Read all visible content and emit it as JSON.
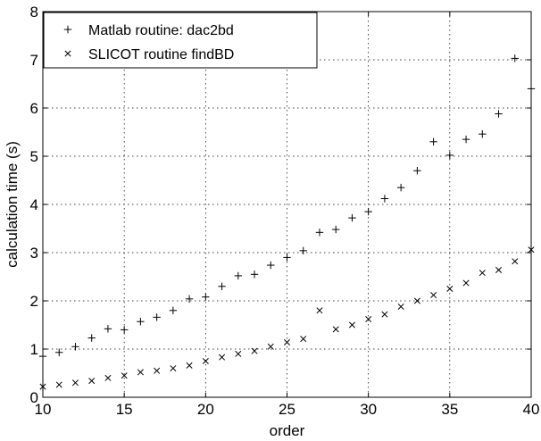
{
  "chart_data": {
    "type": "scatter",
    "xlabel": "order",
    "ylabel": "calculation time (s)",
    "xlim": [
      10,
      40
    ],
    "ylim": [
      0,
      8
    ],
    "xticks": [
      10,
      15,
      20,
      25,
      30,
      35,
      40
    ],
    "yticks": [
      0,
      1,
      2,
      3,
      4,
      5,
      6,
      7,
      8
    ],
    "grid": true,
    "legend_position": "top-left",
    "series": [
      {
        "name": "Matlab routine: dac2bd",
        "marker": "plus",
        "x": [
          10,
          11,
          12,
          13,
          14,
          15,
          16,
          17,
          18,
          19,
          20,
          21,
          22,
          23,
          24,
          25,
          26,
          27,
          28,
          29,
          30,
          31,
          32,
          33,
          34,
          35,
          36,
          37,
          38,
          39,
          40
        ],
        "y": [
          0.85,
          0.93,
          1.05,
          1.23,
          1.42,
          1.4,
          1.57,
          1.66,
          1.8,
          2.04,
          2.08,
          2.3,
          2.52,
          2.55,
          2.74,
          2.9,
          3.04,
          3.42,
          3.48,
          3.72,
          3.85,
          4.12,
          4.35,
          4.7,
          5.3,
          5.02,
          5.35,
          5.46,
          5.88,
          7.03,
          6.4
        ]
      },
      {
        "name": "SLICOT routine findBD",
        "marker": "cross",
        "x": [
          10,
          11,
          12,
          13,
          14,
          15,
          16,
          17,
          18,
          19,
          20,
          21,
          22,
          23,
          24,
          25,
          26,
          27,
          28,
          29,
          30,
          31,
          32,
          33,
          34,
          35,
          36,
          37,
          38,
          39,
          40
        ],
        "y": [
          0.22,
          0.26,
          0.3,
          0.34,
          0.4,
          0.45,
          0.52,
          0.55,
          0.6,
          0.66,
          0.75,
          0.83,
          0.9,
          0.96,
          1.05,
          1.14,
          1.21,
          1.8,
          1.41,
          1.5,
          1.62,
          1.72,
          1.88,
          2.0,
          2.12,
          2.25,
          2.37,
          2.58,
          2.64,
          2.82,
          3.06
        ]
      }
    ]
  }
}
